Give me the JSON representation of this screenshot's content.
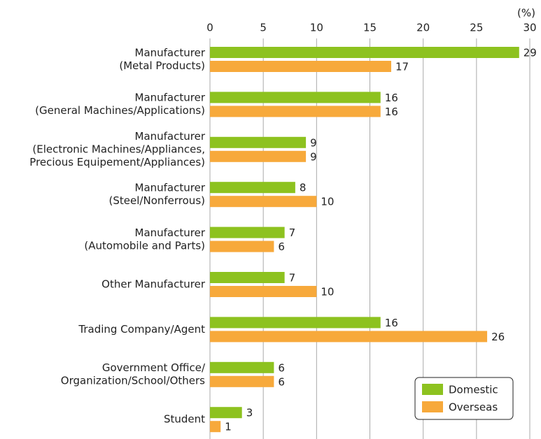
{
  "chart_data": {
    "type": "hbar",
    "x_unit": "(%)",
    "categories": [
      [
        "Manufacturer",
        "(Metal Products)"
      ],
      [
        "Manufacturer",
        "(General Machines/Applications)"
      ],
      [
        "Manufacturer",
        "(Electronic Machines/Appliances,",
        "Precious Equipement/Appliances)"
      ],
      [
        "Manufacturer",
        "(Steel/Nonferrous)"
      ],
      [
        "Manufacturer",
        "(Automobile and Parts)"
      ],
      [
        "Other Manufacturer"
      ],
      [
        "Trading Company/Agent"
      ],
      [
        "Government Office/",
        "Organization/School/Others"
      ],
      [
        "Student"
      ]
    ],
    "series": [
      {
        "name": "Domestic",
        "color": "#8dc21f",
        "values": [
          29,
          16,
          9,
          8,
          7,
          7,
          16,
          6,
          3
        ]
      },
      {
        "name": "Overseas",
        "color": "#f7a93b",
        "values": [
          17,
          16,
          9,
          10,
          6,
          10,
          26,
          6,
          1
        ]
      }
    ],
    "xlim": [
      0,
      30
    ],
    "xticks": [
      0,
      5,
      10,
      15,
      20,
      25,
      30
    ],
    "grid": true,
    "legend": "lower right"
  }
}
